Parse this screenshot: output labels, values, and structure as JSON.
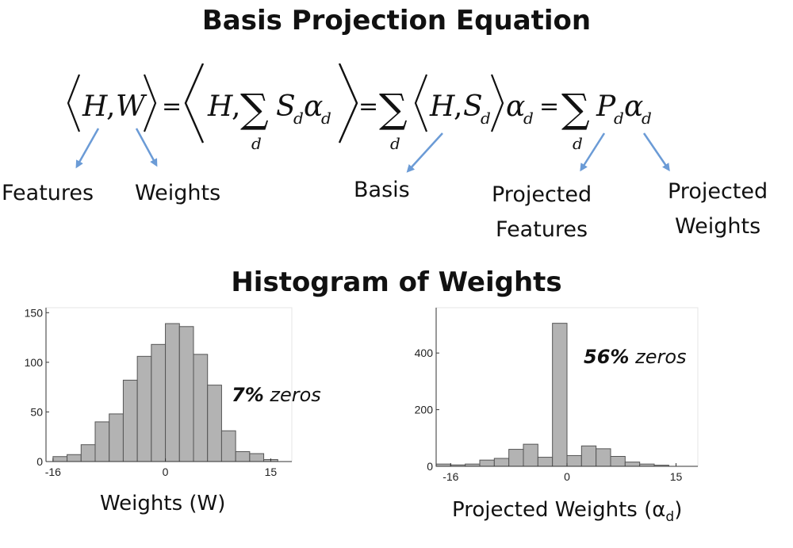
{
  "titles": {
    "top": "Basis Projection Equation",
    "middle": "Histogram of Weights"
  },
  "equation": {
    "H": "H",
    "W": "W",
    "S": "S",
    "P": "P",
    "d": "d",
    "alpha": "α",
    "sigma": "∑",
    "equals": "=",
    "comma": ","
  },
  "labels": {
    "features": "Features",
    "weights": "Weights",
    "basis": "Basis",
    "projected_features_1": "Projected",
    "projected_features_2": "Features",
    "projected_weights_1": "Projected",
    "projected_weights_2": "Weights"
  },
  "colors": {
    "arrow": "#6b9bd6",
    "bar_fill": "#b3b3b3",
    "bar_stroke": "#555555"
  },
  "chart_data": [
    {
      "type": "bar",
      "xlabel": "Weights (W)",
      "annotation_value": "7%",
      "annotation_text": "zeros",
      "xlim": [
        -17,
        18
      ],
      "ylim": [
        0,
        155
      ],
      "xticks": [
        -16,
        0,
        15
      ],
      "yticks": [
        0,
        50,
        100,
        150
      ],
      "bin_width": 2,
      "bins_start": [
        -16,
        -14,
        -12,
        -10,
        -8,
        -6,
        -4,
        -2,
        0,
        2,
        4,
        6,
        8,
        10,
        12,
        14
      ],
      "values": [
        5,
        7,
        17,
        40,
        48,
        82,
        106,
        118,
        139,
        136,
        108,
        77,
        31,
        10,
        8,
        2
      ]
    },
    {
      "type": "bar",
      "xlabel_main": "Projected Weights (α",
      "xlabel_sub": "d",
      "xlabel_close": ")",
      "annotation_value": "56%",
      "annotation_text": "zeros",
      "xlim": [
        -18,
        18
      ],
      "ylim": [
        0,
        560
      ],
      "xticks": [
        -16,
        0,
        15
      ],
      "yticks": [
        0,
        200,
        400
      ],
      "bin_width": 2,
      "bins_start": [
        -18,
        -16,
        -14,
        -12,
        -10,
        -8,
        -6,
        -4,
        -2,
        0,
        2,
        4,
        6,
        8,
        10,
        12
      ],
      "values": [
        8,
        5,
        8,
        22,
        28,
        60,
        78,
        32,
        505,
        38,
        72,
        62,
        35,
        15,
        8,
        4
      ]
    }
  ]
}
